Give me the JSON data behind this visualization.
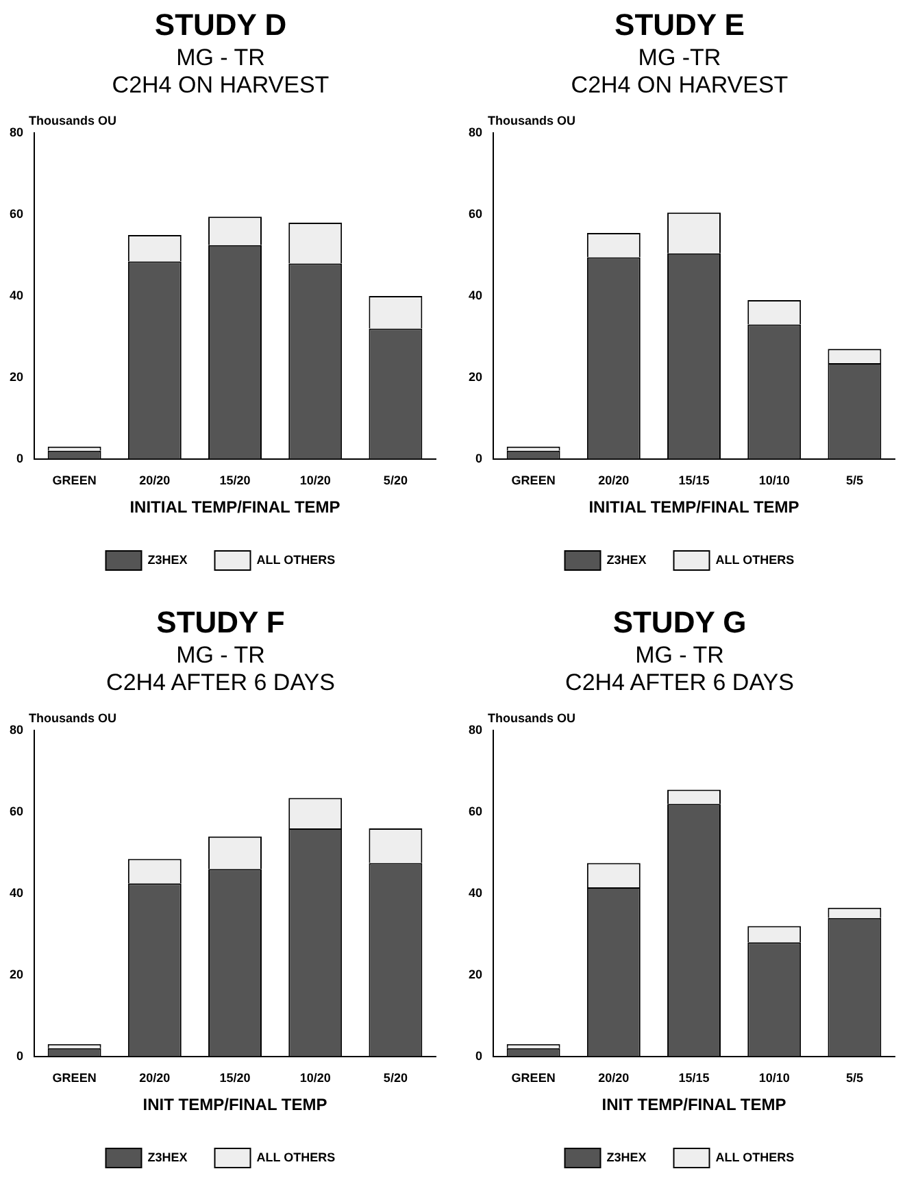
{
  "chart_data": [
    {
      "type": "bar",
      "title": "STUDY D",
      "subtitle": "MG - TR\nC2H4 ON HARVEST",
      "xlabel": "INITIAL TEMP/FINAL TEMP",
      "ylabel": "Thousands OU",
      "categories": [
        "GREEN",
        "20/20",
        "15/20",
        "10/20",
        "5/20"
      ],
      "stacked": true,
      "ylim": [
        0,
        80
      ],
      "yticks": [
        0,
        20,
        40,
        60,
        80
      ],
      "legend": "bottom",
      "series": [
        {
          "name": "Z3HEX",
          "color": "#555555",
          "values": [
            2,
            48.5,
            52.5,
            48,
            32
          ]
        },
        {
          "name": "ALL OTHERS",
          "color": "#eeeeee",
          "values": [
            1,
            6.5,
            7,
            10,
            8
          ]
        }
      ]
    },
    {
      "type": "bar",
      "title": "STUDY E",
      "subtitle": "MG -TR\nC2H4 ON HARVEST",
      "xlabel": "INITIAL TEMP/FINAL TEMP",
      "ylabel": "Thousands OU",
      "categories": [
        "GREEN",
        "20/20",
        "15/15",
        "10/10",
        "5/5"
      ],
      "stacked": true,
      "ylim": [
        0,
        80
      ],
      "yticks": [
        0,
        20,
        40,
        60,
        80
      ],
      "legend": "bottom",
      "series": [
        {
          "name": "Z3HEX",
          "color": "#555555",
          "values": [
            2,
            49.5,
            50.5,
            33,
            23.5
          ]
        },
        {
          "name": "ALL OTHERS",
          "color": "#eeeeee",
          "values": [
            1,
            6,
            10,
            6,
            3.5
          ]
        }
      ]
    },
    {
      "type": "bar",
      "title": "STUDY F",
      "subtitle": "MG - TR\nC2H4 AFTER 6 DAYS",
      "xlabel": "INIT TEMP/FINAL TEMP",
      "ylabel": "Thousands OU",
      "categories": [
        "GREEN",
        "20/20",
        "15/20",
        "10/20",
        "5/20"
      ],
      "stacked": true,
      "ylim": [
        0,
        80
      ],
      "yticks": [
        0,
        20,
        40,
        60,
        80
      ],
      "legend": "bottom",
      "series": [
        {
          "name": "Z3HEX",
          "color": "#555555",
          "values": [
            2,
            42.5,
            46,
            56,
            47.5
          ]
        },
        {
          "name": "ALL OTHERS",
          "color": "#eeeeee",
          "values": [
            1,
            6,
            8,
            7.5,
            8.5
          ]
        }
      ]
    },
    {
      "type": "bar",
      "title": "STUDY G",
      "subtitle": "MG - TR\nC2H4 AFTER 6 DAYS",
      "xlabel": "INIT TEMP/FINAL TEMP",
      "ylabel": "Thousands OU",
      "categories": [
        "GREEN",
        "20/20",
        "15/15",
        "10/10",
        "5/5"
      ],
      "stacked": true,
      "ylim": [
        0,
        80
      ],
      "yticks": [
        0,
        20,
        40,
        60,
        80
      ],
      "legend": "bottom",
      "series": [
        {
          "name": "Z3HEX",
          "color": "#555555",
          "values": [
            2,
            41.5,
            62,
            28,
            34
          ]
        },
        {
          "name": "ALL OTHERS",
          "color": "#eeeeee",
          "values": [
            1,
            6,
            3.5,
            4,
            2.5
          ]
        }
      ]
    }
  ]
}
